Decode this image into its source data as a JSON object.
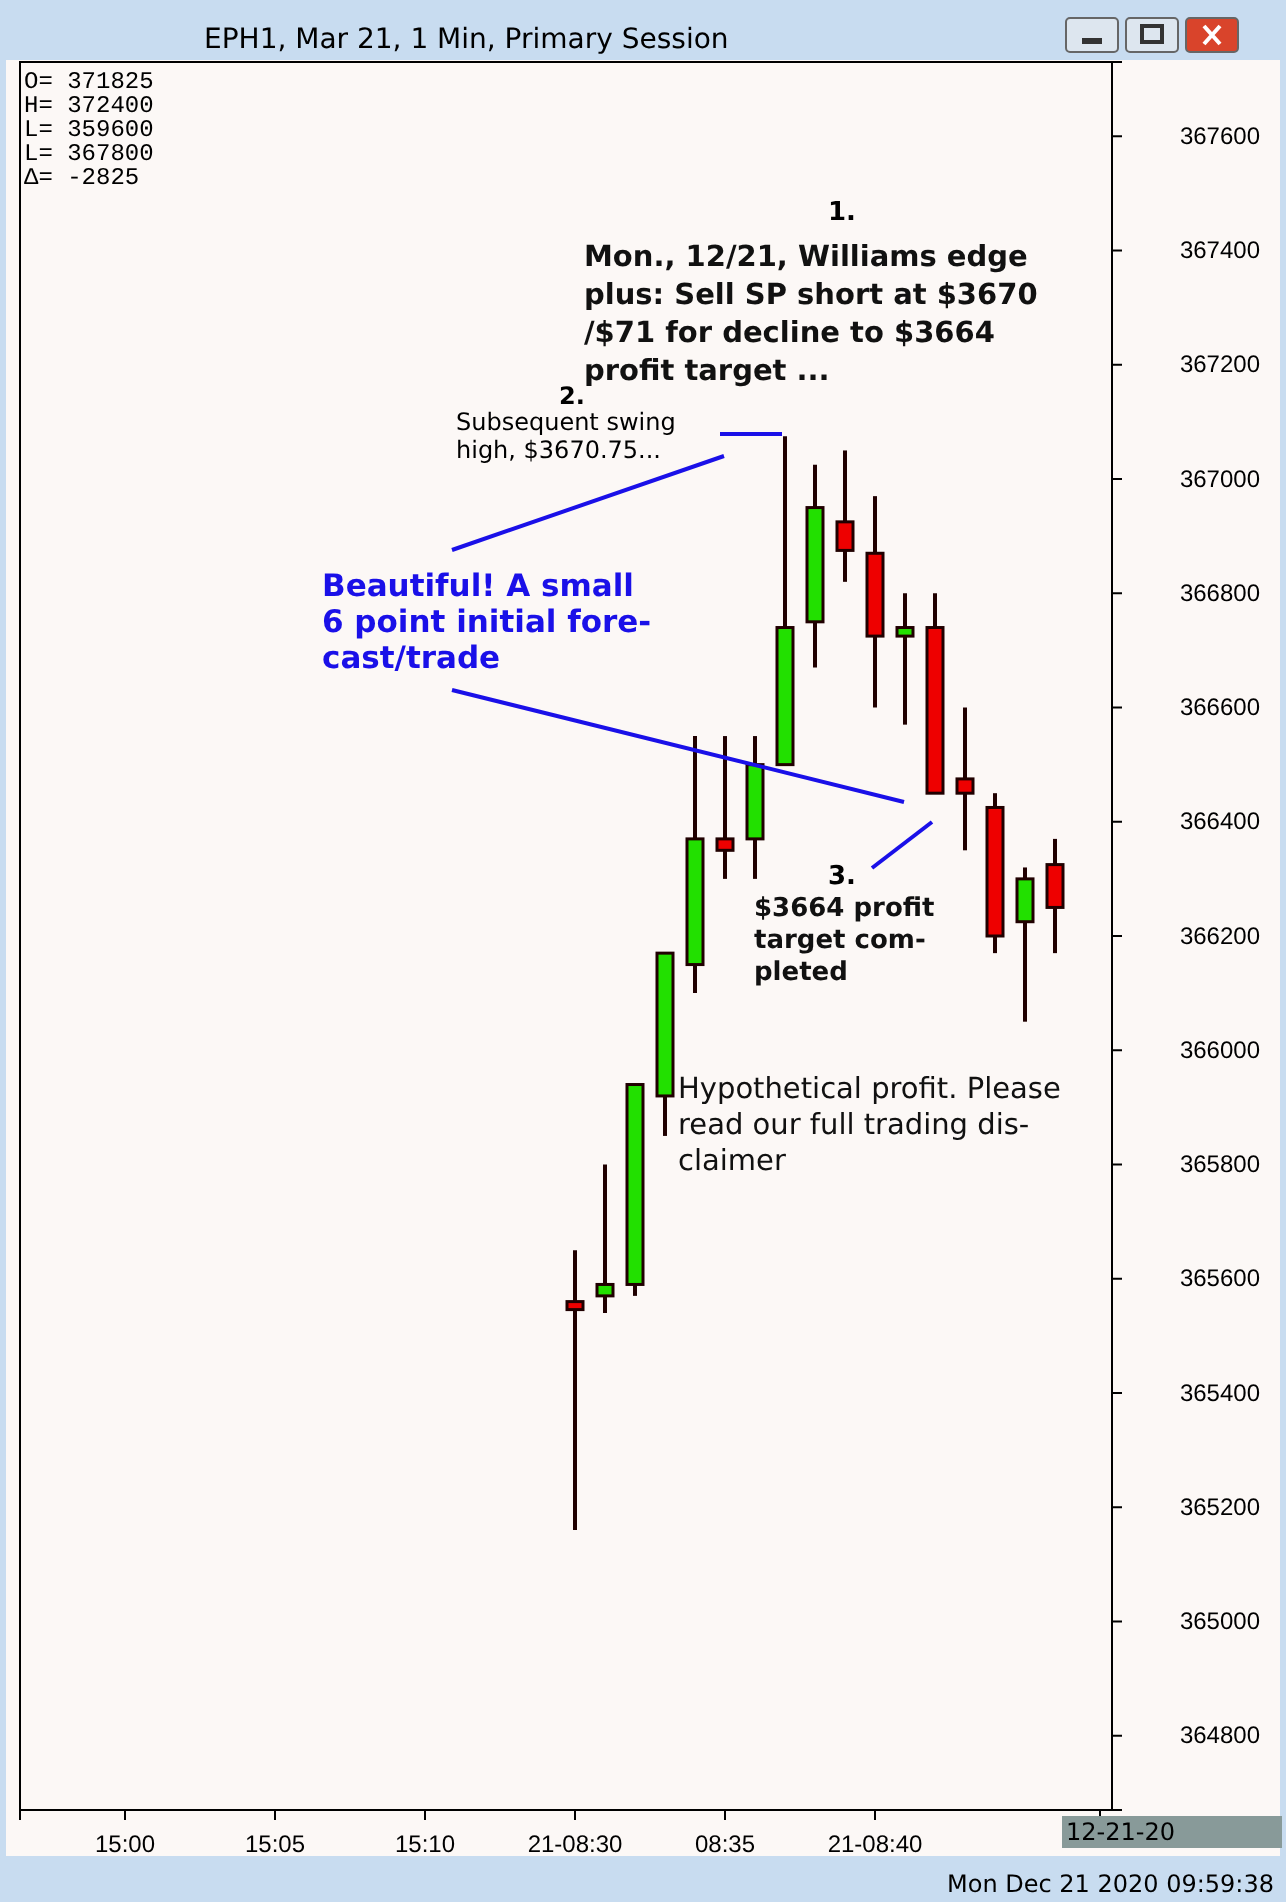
{
  "chart_data": {
    "type": "candlestick",
    "title": "EPH1, Mar 21, 1 Min, Primary Session",
    "categories": [
      null,
      null,
      null,
      "15:00",
      null,
      null,
      null,
      null,
      "15:05",
      null,
      null,
      null,
      null,
      "15:10",
      null,
      null,
      null,
      null,
      "21-08:30",
      null,
      null,
      null,
      null,
      "08:35",
      null,
      null,
      null,
      null,
      "21-08:40",
      null,
      null,
      null,
      null,
      null,
      null,
      null
    ],
    "ohlc": [
      null,
      null,
      null,
      null,
      null,
      null,
      null,
      null,
      null,
      null,
      null,
      null,
      null,
      null,
      null,
      null,
      null,
      null,
      [
        365560,
        365650,
        365160,
        365550
      ],
      [
        365570,
        365800,
        365540,
        365590
      ],
      [
        365590,
        365940,
        365570,
        365940
      ],
      [
        365920,
        366170,
        365850,
        366170
      ],
      [
        366150,
        366550,
        366100,
        366370
      ],
      [
        366370,
        366550,
        366300,
        366350
      ],
      [
        366370,
        366550,
        366300,
        366500
      ],
      [
        366500,
        367075,
        366500,
        366740
      ],
      [
        366750,
        367025,
        366670,
        366950
      ],
      [
        366925,
        367050,
        366820,
        366875
      ],
      [
        366870,
        366970,
        366600,
        366725
      ],
      [
        366725,
        366800,
        366570,
        366740
      ],
      [
        366740,
        366800,
        366450,
        366450
      ],
      [
        366475,
        366600,
        366350,
        366450
      ],
      [
        366425,
        366450,
        366170,
        366200
      ],
      [
        366225,
        366320,
        366050,
        366300
      ],
      [
        366325,
        366370,
        366170,
        366250
      ],
      null
    ],
    "colors": [
      null,
      null,
      null,
      null,
      null,
      null,
      null,
      null,
      null,
      null,
      null,
      null,
      null,
      null,
      null,
      null,
      null,
      null,
      "#ee0000",
      "#22e000",
      "#22e000",
      "#22e000",
      "#22e000",
      "#ee0000",
      "#22e000",
      "#22e000",
      "#22e000",
      "#ee0000",
      "#ee0000",
      "#22e000",
      "#ee0000",
      "#ee0000",
      "#ee0000",
      "#22e000",
      "#ee0000",
      null
    ],
    "ylim": [
      364670,
      367730
    ],
    "yticks": [
      364800,
      365000,
      365200,
      365400,
      365600,
      365800,
      366000,
      366200,
      366400,
      366600,
      366800,
      367000,
      367200,
      367400,
      367600
    ],
    "grid": false,
    "annotations": [
      "O=  371825\nH=  372400\nL=  359600\nL=  367800\nΔ=     -2825",
      "1.",
      "Mon., 12/21, Williams edge\nplus: Sell SP short at $3670\n/$71 for decline to $3664\nprofit target ...",
      "2.",
      "Subsequent swing\nhigh, $3670.75...",
      "Beautiful!  A small\n6 point initial fore-\ncast/trade",
      "3.",
      "$3664 profit\ntarget com-\npleted",
      "Hypothetical profit. Please\nread our full trading dis-\nclaimer",
      "12-21-20",
      "Mon Dec 21 2020 09:59:38"
    ]
  }
}
